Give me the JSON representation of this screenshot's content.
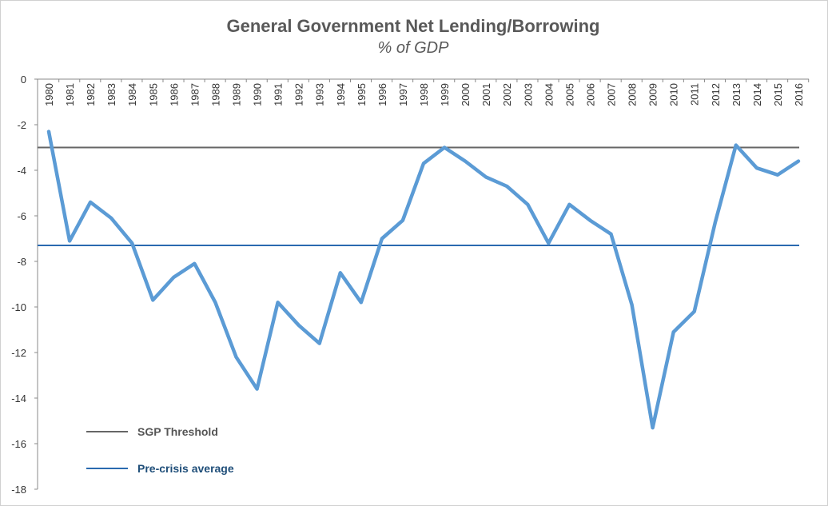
{
  "chart_data": {
    "type": "line",
    "title": "General Government Net Lending/Borrowing",
    "subtitle": "% of GDP",
    "xlabel": "",
    "ylabel": "",
    "ylim": [
      -18,
      0
    ],
    "yticks": [
      0,
      -2,
      -4,
      -6,
      -8,
      -10,
      -12,
      -14,
      -16,
      -18
    ],
    "grid": false,
    "legend_placement": "bottom-left",
    "categories": [
      "1980",
      "1981",
      "1982",
      "1983",
      "1984",
      "1985",
      "1986",
      "1987",
      "1988",
      "1989",
      "1990",
      "1991",
      "1992",
      "1993",
      "1994",
      "1995",
      "1996",
      "1997",
      "1998",
      "1999",
      "2000",
      "2001",
      "2002",
      "2003",
      "2004",
      "2005",
      "2006",
      "2007",
      "2008",
      "2009",
      "2010",
      "2011",
      "2012",
      "2013",
      "2014",
      "2015",
      "2016"
    ],
    "series": [
      {
        "name": "",
        "color": "#5b9bd5",
        "values": [
          -2.3,
          -7.1,
          -5.4,
          -6.1,
          -7.2,
          -9.7,
          -8.7,
          -8.1,
          -9.8,
          -12.2,
          -13.6,
          -9.8,
          -10.8,
          -11.6,
          -8.5,
          -9.8,
          -7.0,
          -6.2,
          -3.7,
          -3.0,
          -3.6,
          -4.3,
          -4.7,
          -5.5,
          -7.2,
          -5.5,
          -6.2,
          -6.8,
          -9.9,
          -15.3,
          -11.1,
          -10.2,
          -6.3,
          -2.9,
          -3.9,
          -4.2,
          -3.6
        ]
      }
    ],
    "reference_lines": [
      {
        "name": "SGP Threshold",
        "value": -3.0,
        "color": "#666666"
      },
      {
        "name": "Pre-crisis average",
        "value": -7.3,
        "color": "#2a6ab0"
      }
    ]
  }
}
